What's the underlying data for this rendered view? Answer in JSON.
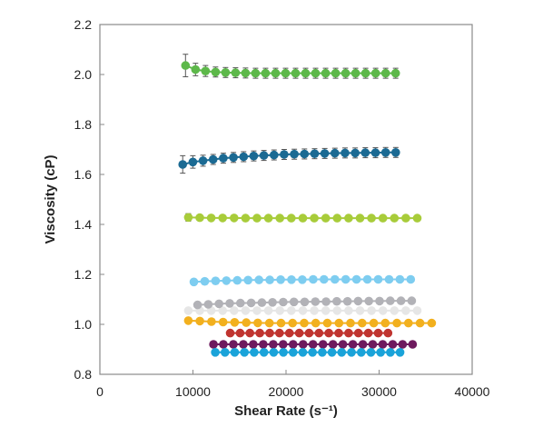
{
  "chart_data": {
    "type": "scatter",
    "title": "",
    "xlabel": "Shear Rate (s⁻¹)",
    "ylabel": "Viscosity (cP)",
    "xlim": [
      0,
      40000
    ],
    "ylim": [
      0.8,
      2.2
    ],
    "xticks": [
      "0",
      "10000",
      "20000",
      "30000",
      "40000"
    ],
    "yticks": [
      "0.8",
      "1.0",
      "1.2",
      "1.4",
      "1.6",
      "1.8",
      "2.0",
      "2.2"
    ],
    "grid": false,
    "legend": "none",
    "series": [
      {
        "color": "#5db84a",
        "x_start": 9200,
        "x_step": 1075,
        "points": 22,
        "values": [
          2.036,
          2.02,
          2.014,
          2.01,
          2.008,
          2.007,
          2.006,
          2.005,
          2.005,
          2.005,
          2.005,
          2.005,
          2.005,
          2.005,
          2.005,
          2.005,
          2.005,
          2.005,
          2.005,
          2.005,
          2.005,
          2.005
        ],
        "error": [
          0.045,
          0.025,
          0.022,
          0.02,
          0.02,
          0.02,
          0.02,
          0.02,
          0.02,
          0.02,
          0.02,
          0.02,
          0.02,
          0.02,
          0.02,
          0.02,
          0.02,
          0.02,
          0.02,
          0.02,
          0.02,
          0.02
        ]
      },
      {
        "color": "#1b6a93",
        "x_start": 8900,
        "x_step": 1090,
        "points": 22,
        "values": [
          1.64,
          1.65,
          1.655,
          1.66,
          1.665,
          1.668,
          1.671,
          1.674,
          1.676,
          1.678,
          1.68,
          1.681,
          1.682,
          1.683,
          1.684,
          1.685,
          1.686,
          1.686,
          1.687,
          1.687,
          1.688,
          1.688
        ],
        "error": [
          0.035,
          0.025,
          0.022,
          0.02,
          0.02,
          0.02,
          0.02,
          0.02,
          0.02,
          0.02,
          0.02,
          0.02,
          0.02,
          0.02,
          0.02,
          0.02,
          0.02,
          0.02,
          0.02,
          0.02,
          0.02,
          0.02
        ]
      },
      {
        "color": "#a8cc3a",
        "x_start": 9500,
        "x_step": 1230,
        "points": 21,
        "values": [
          1.428,
          1.427,
          1.426,
          1.426,
          1.426,
          1.425,
          1.425,
          1.425,
          1.425,
          1.425,
          1.425,
          1.425,
          1.425,
          1.425,
          1.425,
          1.425,
          1.425,
          1.425,
          1.425,
          1.425,
          1.425
        ],
        "error": [
          0.015,
          0.008,
          0.008,
          0.008,
          0.008,
          0.008,
          0.008,
          0.008,
          0.008,
          0.008,
          0.008,
          0.008,
          0.008,
          0.008,
          0.008,
          0.008,
          0.008,
          0.008,
          0.008,
          0.008,
          0.008
        ]
      },
      {
        "color": "#7ecdf0",
        "x_start": 10100,
        "x_step": 1165,
        "points": 21,
        "values": [
          1.17,
          1.172,
          1.174,
          1.175,
          1.176,
          1.177,
          1.178,
          1.178,
          1.179,
          1.179,
          1.179,
          1.18,
          1.18,
          1.18,
          1.18,
          1.18,
          1.18,
          1.18,
          1.18,
          1.18,
          1.18
        ]
      },
      {
        "color": "#e6e6e6",
        "x_start": 9500,
        "x_step": 1230,
        "points": 21,
        "values": [
          1.055,
          1.055,
          1.055,
          1.055,
          1.055,
          1.055,
          1.055,
          1.055,
          1.055,
          1.055,
          1.055,
          1.055,
          1.055,
          1.055,
          1.055,
          1.055,
          1.055,
          1.055,
          1.055,
          1.055,
          1.055
        ]
      },
      {
        "color": "#b2b2b7",
        "x_start": 10500,
        "x_step": 1150,
        "points": 21,
        "values": [
          1.078,
          1.08,
          1.082,
          1.084,
          1.085,
          1.086,
          1.087,
          1.088,
          1.089,
          1.09,
          1.09,
          1.091,
          1.091,
          1.092,
          1.092,
          1.093,
          1.093,
          1.093,
          1.094,
          1.094,
          1.094
        ]
      },
      {
        "color": "#f2b01e",
        "x_start": 9500,
        "x_step": 1245,
        "points": 22,
        "values": [
          1.015,
          1.013,
          1.011,
          1.009,
          1.008,
          1.007,
          1.006,
          1.005,
          1.005,
          1.005,
          1.005,
          1.005,
          1.005,
          1.005,
          1.005,
          1.005,
          1.005,
          1.005,
          1.005,
          1.005,
          1.005,
          1.005
        ]
      },
      {
        "color": "#c0342f",
        "x_start": 14000,
        "x_step": 1060,
        "points": 17,
        "values": [
          0.965,
          0.965,
          0.965,
          0.965,
          0.965,
          0.965,
          0.965,
          0.965,
          0.965,
          0.965,
          0.965,
          0.965,
          0.965,
          0.965,
          0.965,
          0.965,
          0.965
        ]
      },
      {
        "color": "#6e1a5e",
        "x_start": 12200,
        "x_step": 1070,
        "points": 21,
        "values": [
          0.92,
          0.92,
          0.92,
          0.92,
          0.92,
          0.92,
          0.92,
          0.92,
          0.92,
          0.92,
          0.92,
          0.92,
          0.92,
          0.92,
          0.92,
          0.92,
          0.92,
          0.92,
          0.92,
          0.92,
          0.92
        ]
      },
      {
        "color": "#1aa3d9",
        "x_start": 12400,
        "x_step": 1045,
        "points": 20,
        "values": [
          0.888,
          0.888,
          0.888,
          0.888,
          0.888,
          0.888,
          0.888,
          0.888,
          0.888,
          0.888,
          0.888,
          0.888,
          0.888,
          0.888,
          0.888,
          0.888,
          0.888,
          0.888,
          0.888,
          0.888
        ]
      }
    ]
  }
}
